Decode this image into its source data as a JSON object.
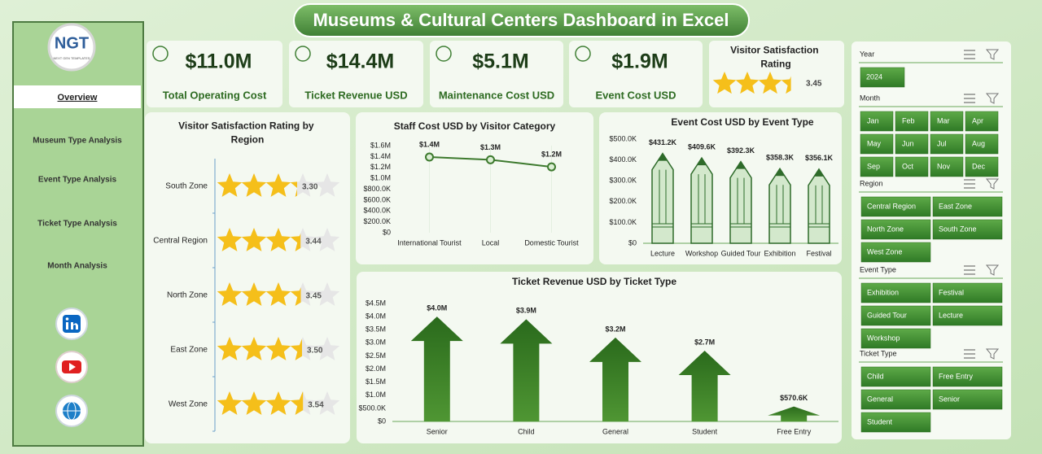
{
  "title": "Museums & Cultural Centers Dashboard in Excel",
  "logo": {
    "mark": "NGT",
    "tagline": "NEXT GEN TEMPLATES"
  },
  "navigation": [
    "Overview",
    "Museum Type Analysis",
    "Event Type Analysis",
    "Ticket Type Analysis",
    "Month Analysis"
  ],
  "kpis": [
    {
      "value": "$11.0M",
      "label": "Total Operating Cost"
    },
    {
      "value": "$14.4M",
      "label": "Ticket Revenue USD"
    },
    {
      "value": "$5.1M",
      "label": "Maintenance Cost USD"
    },
    {
      "value": "$1.9M",
      "label": "Event Cost USD"
    }
  ],
  "rating_card": {
    "title": "Visitor Satisfaction Rating",
    "value": 3.45
  },
  "slicers": [
    {
      "title": "Year",
      "items": [
        "2024"
      ]
    },
    {
      "title": "Month",
      "items": [
        "Jan",
        "Feb",
        "Mar",
        "Apr",
        "May",
        "Jun",
        "Jul",
        "Aug",
        "Sep",
        "Oct",
        "Nov",
        "Dec"
      ]
    },
    {
      "title": "Region",
      "items": [
        "Central Region",
        "East Zone",
        "North Zone",
        "South Zone",
        "West Zone"
      ]
    },
    {
      "title": "Event Type",
      "items": [
        "Exhibition",
        "Festival",
        "Guided Tour",
        "Lecture",
        "Workshop"
      ]
    },
    {
      "title": "Ticket Type",
      "items": [
        "Child",
        "Free Entry",
        "General",
        "Senior",
        "Student"
      ]
    }
  ],
  "chart_data": [
    {
      "type": "rating",
      "title": "Visitor Satisfaction Rating by Region",
      "categories": [
        "South Zone",
        "Central Region",
        "North Zone",
        "East Zone",
        "West Zone"
      ],
      "values": [
        3.3,
        3.44,
        3.45,
        3.5,
        3.54
      ],
      "value_labels": [
        "3.30",
        "3.44",
        "3.45",
        "3.50",
        "3.54"
      ],
      "xlim": [
        0,
        5
      ],
      "color": "#f5bf1a"
    },
    {
      "type": "line",
      "title": "Staff Cost USD by Visitor Category",
      "categories": [
        "International Tourist",
        "Local",
        "Domestic Tourist"
      ],
      "values": [
        1390000,
        1340000,
        1210000
      ],
      "value_labels": [
        "$1.4M",
        "$1.3M",
        "$1.2M"
      ],
      "ylim": [
        0,
        1600000
      ],
      "yticks": [
        {
          "value": 0,
          "label": "$0"
        },
        {
          "value": 200000,
          "label": "$200.0K"
        },
        {
          "value": 400000,
          "label": "$400.0K"
        },
        {
          "value": 600000,
          "label": "$600.0K"
        },
        {
          "value": 800000,
          "label": "$800.0K"
        },
        {
          "value": 1000000,
          "label": "$1.0M"
        },
        {
          "value": 1200000,
          "label": "$1.2M"
        },
        {
          "value": 1400000,
          "label": "$1.4M"
        },
        {
          "value": 1600000,
          "label": "$1.6M"
        }
      ],
      "color": "#3d7a2e"
    },
    {
      "type": "bar",
      "shape": "pencil",
      "title": "Event Cost USD by Event Type",
      "categories": [
        "Lecture",
        "Workshop",
        "Guided Tour",
        "Exhibition",
        "Festival"
      ],
      "values": [
        431200,
        409600,
        392300,
        358300,
        356100
      ],
      "value_labels": [
        "$431.2K",
        "$409.6K",
        "$392.3K",
        "$358.3K",
        "$356.1K"
      ],
      "ylim": [
        0,
        500000
      ],
      "yticks": [
        {
          "value": 0,
          "label": "$0"
        },
        {
          "value": 100000,
          "label": "$100.0K"
        },
        {
          "value": 200000,
          "label": "$200.0K"
        },
        {
          "value": 300000,
          "label": "$300.0K"
        },
        {
          "value": 400000,
          "label": "$400.0K"
        },
        {
          "value": 500000,
          "label": "$500.0K"
        }
      ],
      "color": "#d3e8cc"
    },
    {
      "type": "bar",
      "shape": "arrow",
      "title": "Ticket Revenue USD by Ticket Type",
      "categories": [
        "Senior",
        "Child",
        "General",
        "Student",
        "Free Entry"
      ],
      "values": [
        4000000,
        3900000,
        3200000,
        2700000,
        570600
      ],
      "value_labels": [
        "$4.0M",
        "$3.9M",
        "$3.2M",
        "$2.7M",
        "$570.6K"
      ],
      "ylim": [
        0,
        4500000
      ],
      "yticks": [
        {
          "value": 0,
          "label": "$0"
        },
        {
          "value": 500000,
          "label": "$500.0K"
        },
        {
          "value": 1000000,
          "label": "$1.0M"
        },
        {
          "value": 1500000,
          "label": "$1.5M"
        },
        {
          "value": 2000000,
          "label": "$2.0M"
        },
        {
          "value": 2500000,
          "label": "$2.5M"
        },
        {
          "value": 3000000,
          "label": "$3.0M"
        },
        {
          "value": 3500000,
          "label": "$3.5M"
        },
        {
          "value": 4000000,
          "label": "$4.0M"
        },
        {
          "value": 4500000,
          "label": "$4.5M"
        }
      ],
      "color": "#2f6e1f"
    }
  ]
}
